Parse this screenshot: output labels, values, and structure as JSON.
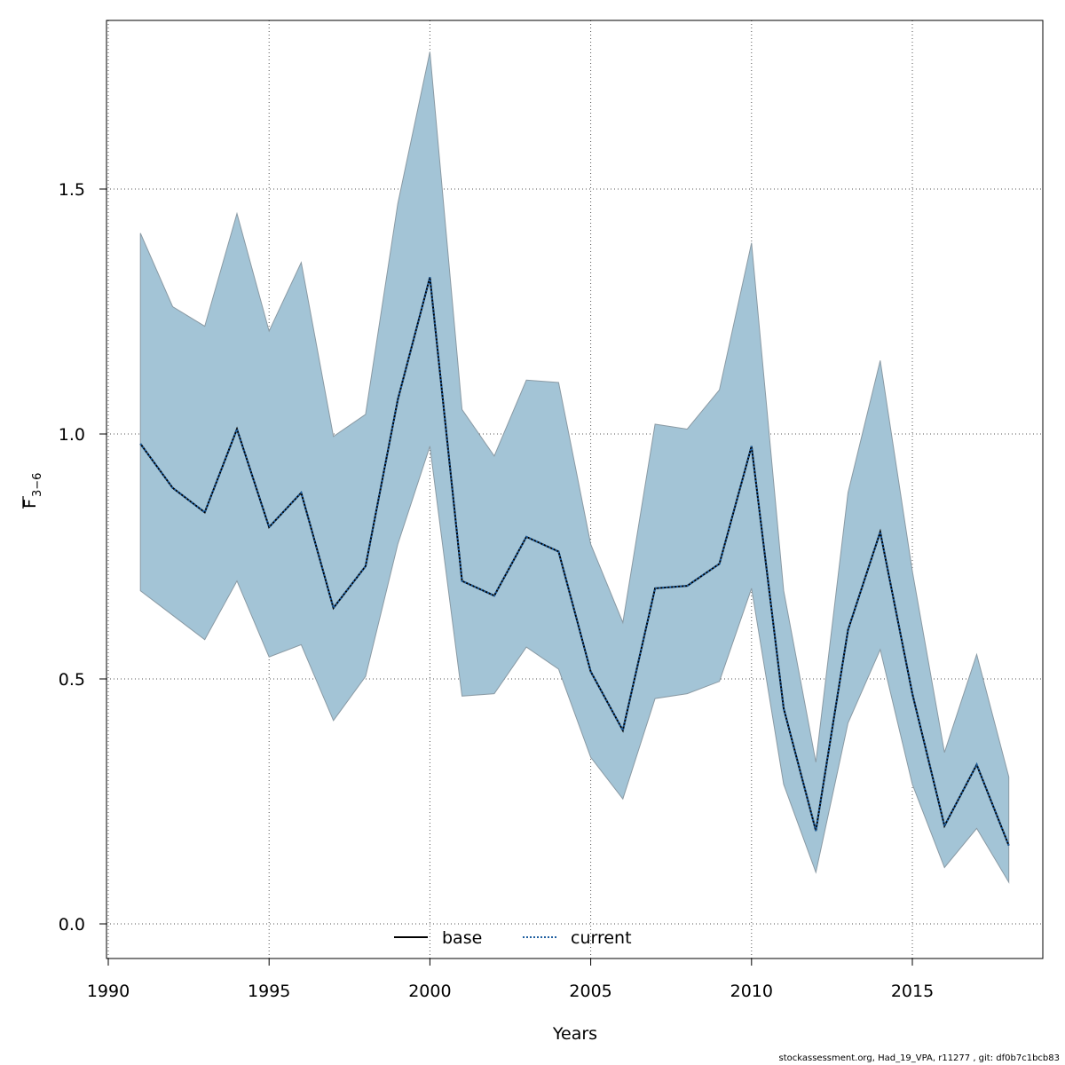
{
  "chart_data": {
    "type": "line",
    "title": "",
    "xlabel": "Years",
    "ylabel_main": "F",
    "ylabel_sub": "3−6",
    "xlim": [
      1990,
      2019
    ],
    "ylim": [
      0.0,
      1.8
    ],
    "x_ticks": [
      1990,
      1995,
      2000,
      2005,
      2010,
      2015
    ],
    "x_tick_labels": [
      "1990",
      "1995",
      "2000",
      "2005",
      "2010",
      "2015"
    ],
    "y_ticks": [
      0.0,
      0.5,
      1.0,
      1.5
    ],
    "y_tick_labels": [
      "0.0",
      "0.5",
      "1.0",
      "1.5"
    ],
    "grid": true,
    "legend_position": "bottom-center",
    "x": [
      1991,
      1992,
      1993,
      1994,
      1995,
      1996,
      1997,
      1998,
      1999,
      2000,
      2001,
      2002,
      2003,
      2004,
      2005,
      2006,
      2007,
      2008,
      2009,
      2010,
      2011,
      2012,
      2013,
      2014,
      2015,
      2016,
      2017,
      2018
    ],
    "band": {
      "color": "#a3c4d6",
      "upper": [
        1.41,
        1.26,
        1.22,
        1.45,
        1.21,
        1.35,
        0.995,
        1.04,
        1.47,
        1.78,
        1.05,
        0.955,
        1.11,
        1.105,
        0.775,
        0.615,
        1.02,
        1.01,
        1.09,
        1.39,
        0.68,
        0.33,
        0.88,
        1.15,
        0.72,
        0.35,
        0.55,
        0.3
      ],
      "lower": [
        0.68,
        0.63,
        0.58,
        0.7,
        0.545,
        0.57,
        0.415,
        0.505,
        0.775,
        0.975,
        0.465,
        0.47,
        0.565,
        0.52,
        0.34,
        0.255,
        0.46,
        0.47,
        0.495,
        0.685,
        0.285,
        0.105,
        0.41,
        0.56,
        0.285,
        0.115,
        0.195,
        0.085
      ]
    },
    "series": [
      {
        "name": "base",
        "style": "solid",
        "color": "#000000",
        "values": [
          0.98,
          0.89,
          0.84,
          1.01,
          0.81,
          0.88,
          0.645,
          0.73,
          1.07,
          1.32,
          0.7,
          0.67,
          0.79,
          0.76,
          0.515,
          0.395,
          0.685,
          0.69,
          0.735,
          0.975,
          0.44,
          0.19,
          0.6,
          0.8,
          0.47,
          0.2,
          0.325,
          0.16
        ]
      },
      {
        "name": "current",
        "style": "dotted",
        "color": "#1f5fa0",
        "values": [
          0.98,
          0.89,
          0.84,
          1.01,
          0.81,
          0.88,
          0.645,
          0.73,
          1.07,
          1.32,
          0.7,
          0.67,
          0.79,
          0.76,
          0.515,
          0.395,
          0.685,
          0.69,
          0.735,
          0.975,
          0.44,
          0.19,
          0.6,
          0.8,
          0.47,
          0.2,
          0.325,
          0.16
        ]
      }
    ]
  },
  "footer_text": "stockassessment.org, Had_19_VPA, r11277 , git: df0b7c1bcb83"
}
